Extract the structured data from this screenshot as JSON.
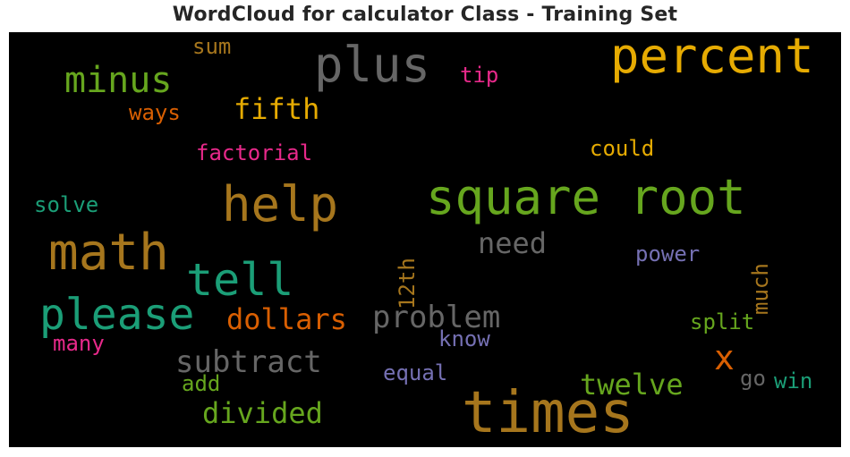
{
  "title": "WordCloud for calculator Class - Training Set",
  "palette": {
    "background": "#000000",
    "green": "#66a61e",
    "teal": "#1b9e77",
    "orange": "#d95f02",
    "gold": "#e6ab02",
    "brown": "#a6761d",
    "gray": "#666666",
    "purple": "#7570b3",
    "pink": "#e7298a"
  },
  "words": [
    {
      "text": "times"
    },
    {
      "text": "square root"
    },
    {
      "text": "math"
    },
    {
      "text": "help"
    },
    {
      "text": "percent"
    },
    {
      "text": "please"
    },
    {
      "text": "plus"
    },
    {
      "text": "tell"
    },
    {
      "text": "minus"
    },
    {
      "text": "problem"
    },
    {
      "text": "subtract"
    },
    {
      "text": "dollars"
    },
    {
      "text": "fifth"
    },
    {
      "text": "divided"
    },
    {
      "text": "twelve"
    },
    {
      "text": "need"
    },
    {
      "text": "x"
    },
    {
      "text": "factorial"
    },
    {
      "text": "could"
    },
    {
      "text": "12th"
    },
    {
      "text": "much"
    },
    {
      "text": "power"
    },
    {
      "text": "split"
    },
    {
      "text": "know"
    },
    {
      "text": "equal"
    },
    {
      "text": "solve"
    },
    {
      "text": "ways"
    },
    {
      "text": "tip"
    },
    {
      "text": "sum"
    },
    {
      "text": "many"
    },
    {
      "text": "add"
    },
    {
      "text": "go"
    },
    {
      "text": "win"
    }
  ]
}
